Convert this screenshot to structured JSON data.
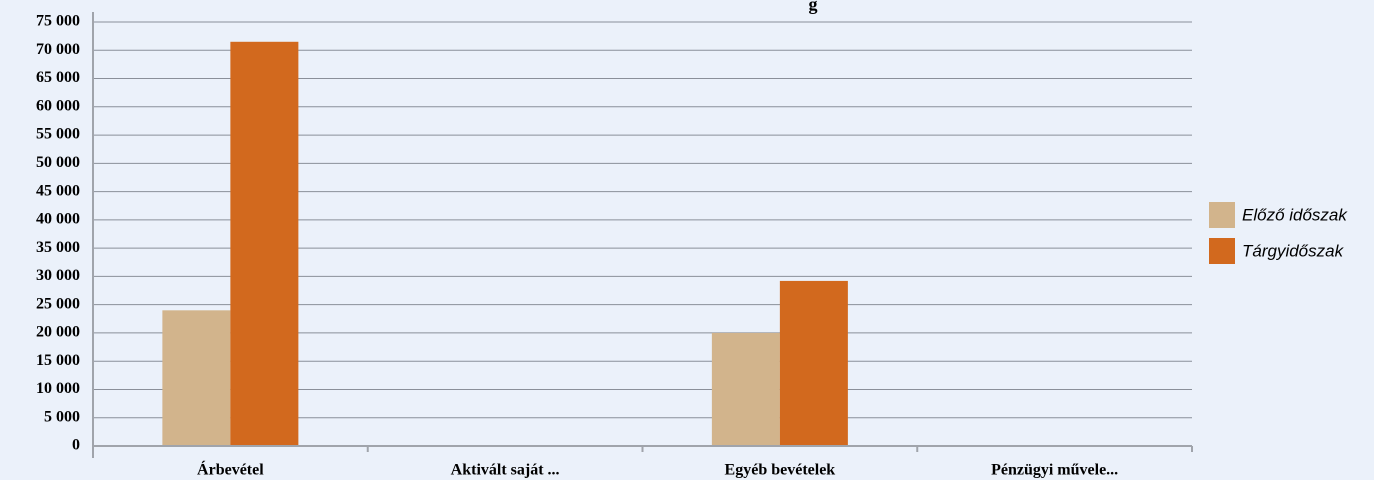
{
  "chart_data": {
    "type": "bar",
    "title": "g",
    "xlabel": "",
    "ylabel": "",
    "ylim": [
      0,
      75000
    ],
    "ytick_step": 5000,
    "ytick_labels": [
      "0",
      "5 000",
      "10 000",
      "15 000",
      "20 000",
      "25 000",
      "30 000",
      "35 000",
      "40 000",
      "45 000",
      "50 000",
      "55 000",
      "60 000",
      "65 000",
      "70 000",
      "75 000"
    ],
    "grid": true,
    "legend_position": "right",
    "categories": [
      "Árbevétel",
      "Aktivált saját ...",
      "Egyéb bevételek",
      "Pénzügyi művele..."
    ],
    "series": [
      {
        "name": "Előző időszak",
        "color": "#d2b48c",
        "values": [
          24000,
          0,
          20000,
          0
        ]
      },
      {
        "name": "Tárgyidőszak",
        "color": "#d2691e",
        "values": [
          71500,
          0,
          29200,
          0
        ]
      }
    ]
  }
}
